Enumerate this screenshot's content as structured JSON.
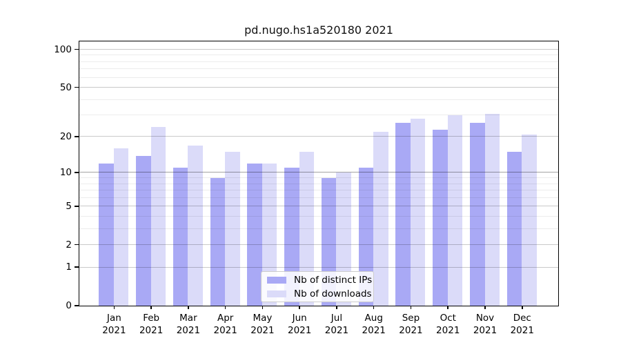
{
  "title": "pd.nugo.hs1a520180 2021",
  "legend": {
    "items": [
      {
        "label": "Nb of distinct IPs",
        "color": "#a9a9f5"
      },
      {
        "label": "Nb of downloads",
        "color": "#dbdbf9"
      }
    ]
  },
  "axis": {
    "y_tick_labels": [
      "100",
      "50",
      "20",
      "10",
      "5",
      "2",
      "1",
      "0"
    ],
    "x_year_line": "2021"
  },
  "chart_data": {
    "type": "bar",
    "title": "pd.nugo.hs1a520180 2021",
    "xlabel": "",
    "ylabel": "",
    "scale": "log1p",
    "ylim": [
      0,
      115
    ],
    "grid": true,
    "legend_position": "inside lower-center",
    "categories": [
      "Jan",
      "Feb",
      "Mar",
      "Apr",
      "May",
      "Jun",
      "Jul",
      "Aug",
      "Sep",
      "Oct",
      "Nov",
      "Dec"
    ],
    "year": "2021",
    "series": [
      {
        "name": "Nb of distinct IPs",
        "color": "#a9a9f5",
        "values": [
          12,
          14,
          11,
          9,
          12,
          11,
          9,
          11,
          26,
          23,
          26,
          15
        ]
      },
      {
        "name": "Nb of downloads",
        "color": "#dbdbf9",
        "values": [
          16,
          24,
          17,
          15,
          12,
          15,
          10,
          22,
          28,
          30,
          31,
          21
        ]
      }
    ],
    "y_major_ticks": [
      0,
      1,
      2,
      5,
      10,
      20,
      50,
      100
    ],
    "y_minor_gridlines": [
      3,
      4,
      6,
      7,
      8,
      9,
      30,
      40,
      60,
      70,
      80,
      90
    ],
    "grid_minor_color": "#ececec",
    "grid_major_color": "#c9c9c9",
    "grid_line10_color": "#a5a5a5"
  }
}
